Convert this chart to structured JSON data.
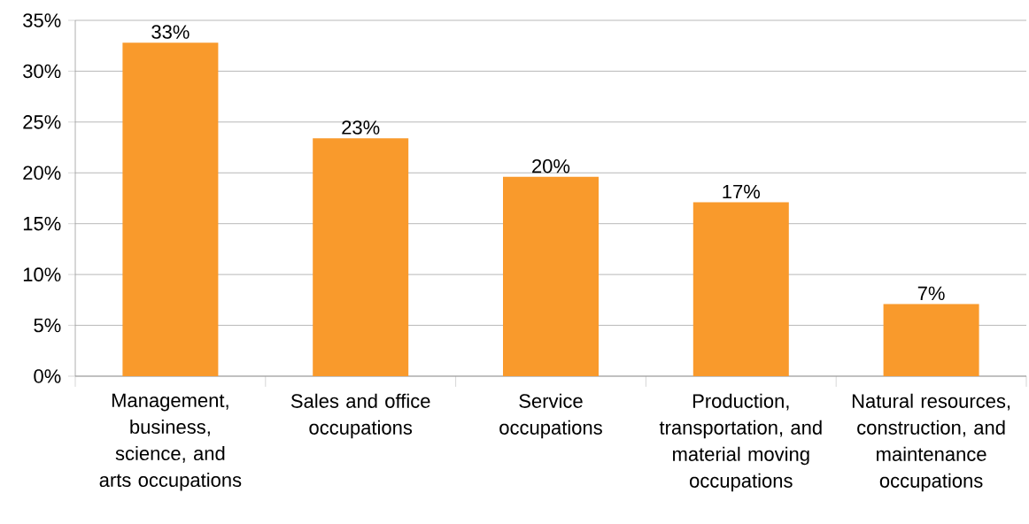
{
  "chart_data": {
    "type": "bar",
    "categories": [
      "Management, business, science, and arts occupations",
      "Sales and office occupations",
      "Service occupations",
      "Production, transportation, and material moving occupations",
      "Natural resources, construction, and maintenance occupations"
    ],
    "values": [
      32.8,
      23.4,
      19.6,
      17.1,
      7.1
    ],
    "value_labels": [
      "33%",
      "23%",
      "20%",
      "17%",
      "7%"
    ],
    "color": "#f99a2c",
    "ylim": [
      0,
      35
    ],
    "yticks": [
      {
        "value": 0,
        "label": "0%"
      },
      {
        "value": 5,
        "label": "5%"
      },
      {
        "value": 10,
        "label": "10%"
      },
      {
        "value": 15,
        "label": "15%"
      },
      {
        "value": 20,
        "label": "20%"
      },
      {
        "value": 25,
        "label": "25%"
      },
      {
        "value": 30,
        "label": "30%"
      },
      {
        "value": 35,
        "label": "35%"
      }
    ],
    "grid": "y"
  }
}
